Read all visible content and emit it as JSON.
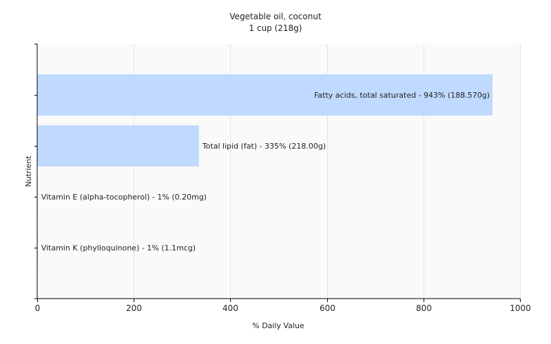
{
  "chart_data": {
    "type": "bar",
    "orientation": "horizontal",
    "title": "Vegetable oil, coconut",
    "subtitle": "1 cup (218g)",
    "xlabel": "% Daily Value",
    "ylabel": "Nutrient",
    "xlim": [
      0,
      1000
    ],
    "xticks": [
      0,
      200,
      400,
      600,
      800,
      1000
    ],
    "grid": true,
    "bar_color": "#c0daff",
    "bars": [
      {
        "label": "Fatty acids, total saturated - 943% (188.570g)",
        "value": 943
      },
      {
        "label": "Total lipid (fat) - 335% (218.00g)",
        "value": 335
      },
      {
        "label": "Vitamin E (alpha-tocopherol) - 1% (0.20mg)",
        "value": 1
      },
      {
        "label": "Vitamin K (phylloquinone) - 1% (1.1mcg)",
        "value": 1
      }
    ]
  }
}
